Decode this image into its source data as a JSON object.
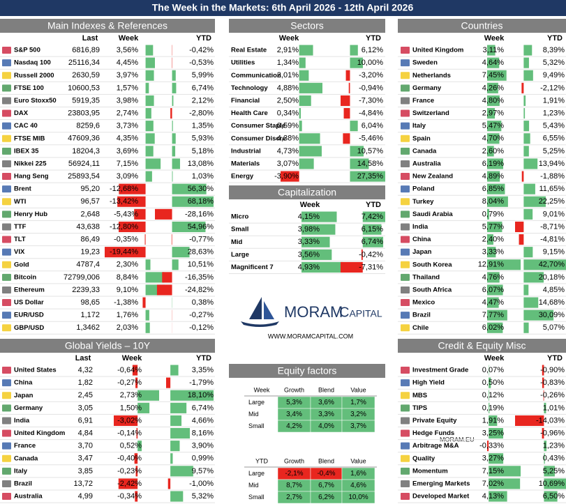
{
  "title": "The Week in the Markets: 6th April 2026 - 12th April 2026",
  "watermark": "MORAM.EU",
  "logo": {
    "name": "MORAM",
    "sub": "Capital",
    "url": "WWW.MORAMCAPITAL.COM"
  },
  "panels": [
    {
      "title": "Main Indexes & References",
      "columns": [
        "Last",
        "Week",
        "YTD"
      ],
      "rows": [
        {
          "name": "S&P 500",
          "cells": [
            "6816,89",
            "3,56%",
            "-0,42%"
          ]
        },
        {
          "name": "Nasdaq 100",
          "cells": [
            "25116,34",
            "4,45%",
            "-0,53%"
          ]
        },
        {
          "name": "Russell 2000",
          "cells": [
            "2630,59",
            "3,97%",
            "5,99%"
          ]
        },
        {
          "name": "FTSE 100",
          "cells": [
            "10600,53",
            "1,57%",
            "6,74%"
          ]
        },
        {
          "name": "Euro Stoxx50",
          "cells": [
            "5919,35",
            "3,98%",
            "2,12%"
          ]
        },
        {
          "name": "DAX",
          "cells": [
            "23803,95",
            "2,74%",
            "-2,80%"
          ]
        },
        {
          "name": "CAC 40",
          "cells": [
            "8259,6",
            "3,73%",
            "1,35%"
          ]
        },
        {
          "name": "FTSE MIB",
          "cells": [
            "47609,36",
            "4,35%",
            "5,93%"
          ]
        },
        {
          "name": "IBEX 35",
          "cells": [
            "18204,3",
            "3,69%",
            "5,18%"
          ]
        },
        {
          "name": "Nikkei 225",
          "cells": [
            "56924,11",
            "7,15%",
            "13,08%"
          ]
        },
        {
          "name": "Hang Seng",
          "cells": [
            "25893,54",
            "3,09%",
            "1,03%"
          ]
        },
        {
          "name": "Brent",
          "cells": [
            "95,20",
            "-12,68%",
            "56,30%"
          ]
        },
        {
          "name": "WTI",
          "cells": [
            "96,57",
            "-13,42%",
            "68,18%"
          ]
        },
        {
          "name": "Henry Hub",
          "cells": [
            "2,648",
            "-5,43%",
            "-28,16%"
          ]
        },
        {
          "name": "TTF",
          "cells": [
            "43,638",
            "-12,80%",
            "54,96%"
          ]
        },
        {
          "name": "TLT",
          "cells": [
            "86,49",
            "-0,35%",
            "-0,77%"
          ]
        },
        {
          "name": "VIX",
          "cells": [
            "19,23",
            "-19,44%",
            "28,63%"
          ]
        },
        {
          "name": "Gold",
          "cells": [
            "4787,4",
            "2,30%",
            "10,51%"
          ]
        },
        {
          "name": "Bitcoin",
          "cells": [
            "72799,006",
            "8,84%",
            "-16,35%"
          ]
        },
        {
          "name": "Ethereum",
          "cells": [
            "2239,33",
            "9,10%",
            "-24,82%"
          ]
        },
        {
          "name": "US Dollar",
          "cells": [
            "98,65",
            "-1,38%",
            "0,38%"
          ]
        },
        {
          "name": "EUR/USD",
          "cells": [
            "1,172",
            "1,76%",
            "-0,27%"
          ]
        },
        {
          "name": "GBP/USD",
          "cells": [
            "1,3462",
            "2,03%",
            "-0,12%"
          ]
        }
      ]
    },
    {
      "title": "Global Yields – 10Y",
      "columns": [
        "Last",
        "Week",
        "YTD"
      ],
      "rows": [
        {
          "name": "United States",
          "cells": [
            "4,32",
            "-0,64%",
            "3,35%"
          ]
        },
        {
          "name": "China",
          "cells": [
            "1,82",
            "-0,27%",
            "-1,79%"
          ]
        },
        {
          "name": "Japan",
          "cells": [
            "2,45",
            "2,73%",
            "18,10%"
          ]
        },
        {
          "name": "Germany",
          "cells": [
            "3,05",
            "1,50%",
            "6,74%"
          ]
        },
        {
          "name": "India",
          "cells": [
            "6,91",
            "-3,02%",
            "4,66%"
          ]
        },
        {
          "name": "United Kingdom",
          "cells": [
            "4,84",
            "-0,14%",
            "8,16%"
          ]
        },
        {
          "name": "France",
          "cells": [
            "3,70",
            "0,52%",
            "3,90%"
          ]
        },
        {
          "name": "Canada",
          "cells": [
            "3,47",
            "-0,40%",
            "0,99%"
          ]
        },
        {
          "name": "Italy",
          "cells": [
            "3,85",
            "-0,23%",
            "9,57%"
          ]
        },
        {
          "name": "Brazil",
          "cells": [
            "13,72",
            "-2,42%",
            "-1,00%"
          ]
        },
        {
          "name": "Australia",
          "cells": [
            "4,99",
            "-0,34%",
            "5,32%"
          ]
        }
      ]
    },
    {
      "title": "Sectors",
      "columns": [
        "Week",
        "YTD"
      ],
      "rows": [
        {
          "name": "Real Estate",
          "cells": [
            "2,91%",
            "6,12%"
          ]
        },
        {
          "name": "Utilities",
          "cells": [
            "1,34%",
            "10,00%"
          ]
        },
        {
          "name": "Communication",
          "cells": [
            "2,01%",
            "-3,20%"
          ]
        },
        {
          "name": "Technology",
          "cells": [
            "4,88%",
            "-0,94%"
          ]
        },
        {
          "name": "Financial",
          "cells": [
            "2,50%",
            "-7,30%"
          ]
        },
        {
          "name": "Health Care",
          "cells": [
            "0,34%",
            "-4,84%"
          ]
        },
        {
          "name": "Consumer Staple",
          "cells": [
            "0,59%",
            "6,04%"
          ]
        },
        {
          "name": "Consumer Discre",
          "cells": [
            "4,38%",
            "-5,46%"
          ]
        },
        {
          "name": "Industrial",
          "cells": [
            "4,73%",
            "10,57%"
          ]
        },
        {
          "name": "Materials",
          "cells": [
            "3,07%",
            "14,58%"
          ]
        },
        {
          "name": "Energy",
          "cells": [
            "-3,90%",
            "27,35%"
          ]
        }
      ]
    },
    {
      "title": "Capitalization",
      "columns": [
        "Week",
        "YTD"
      ],
      "rows": [
        {
          "name": "Micro",
          "cells": [
            "4,15%",
            "7,42%"
          ]
        },
        {
          "name": "Small",
          "cells": [
            "3,98%",
            "6,15%"
          ]
        },
        {
          "name": "Mid",
          "cells": [
            "3,33%",
            "6,74%"
          ]
        },
        {
          "name": "Large",
          "cells": [
            "3,56%",
            "-0,42%"
          ]
        },
        {
          "name": "Magnificent 7",
          "cells": [
            "4,93%",
            "-7,31%"
          ]
        }
      ]
    },
    {
      "title": "Countries",
      "columns": [
        "Week",
        "YTD"
      ],
      "rows": [
        {
          "name": "United Kingdom",
          "cells": [
            "3,11%",
            "8,39%"
          ]
        },
        {
          "name": "Sweden",
          "cells": [
            "4,64%",
            "5,32%"
          ]
        },
        {
          "name": "Netherlands",
          "cells": [
            "7,45%",
            "9,49%"
          ]
        },
        {
          "name": "Germany",
          "cells": [
            "4,26%",
            "-2,12%"
          ]
        },
        {
          "name": "France",
          "cells": [
            "4,80%",
            "1,91%"
          ]
        },
        {
          "name": "Switzerland",
          "cells": [
            "2,97%",
            "1,23%"
          ]
        },
        {
          "name": "Italy",
          "cells": [
            "5,47%",
            "5,43%"
          ]
        },
        {
          "name": "Spain",
          "cells": [
            "4,70%",
            "6,55%"
          ]
        },
        {
          "name": "Canada",
          "cells": [
            "2,60%",
            "5,25%"
          ]
        },
        {
          "name": "Australia",
          "cells": [
            "6,19%",
            "13,94%"
          ]
        },
        {
          "name": "New Zealand",
          "cells": [
            "4,89%",
            "-1,88%"
          ]
        },
        {
          "name": "Poland",
          "cells": [
            "6,85%",
            "11,65%"
          ]
        },
        {
          "name": "Turkey",
          "cells": [
            "8,04%",
            "22,25%"
          ]
        },
        {
          "name": "Saudi Arabia",
          "cells": [
            "0,79%",
            "9,01%"
          ]
        },
        {
          "name": "India",
          "cells": [
            "5,77%",
            "-8,71%"
          ]
        },
        {
          "name": "China",
          "cells": [
            "2,40%",
            "-4,81%"
          ]
        },
        {
          "name": "Japan",
          "cells": [
            "3,33%",
            "9,15%"
          ]
        },
        {
          "name": "South Korea",
          "cells": [
            "12,91%",
            "42,70%"
          ]
        },
        {
          "name": "Thailand",
          "cells": [
            "4,76%",
            "20,18%"
          ]
        },
        {
          "name": "South Africa",
          "cells": [
            "6,07%",
            "4,85%"
          ]
        },
        {
          "name": "Mexico",
          "cells": [
            "4,47%",
            "14,68%"
          ]
        },
        {
          "name": "Brazil",
          "cells": [
            "7,77%",
            "30,09%"
          ]
        },
        {
          "name": "Chile",
          "cells": [
            "6,02%",
            "5,07%"
          ]
        }
      ]
    },
    {
      "title": "Credit & Equity Misc",
      "columns": [
        "Week",
        "YTD"
      ],
      "rows": [
        {
          "name": "Investment Grade",
          "cells": [
            "0,07%",
            "-0,90%"
          ]
        },
        {
          "name": "High Yield",
          "cells": [
            "0,50%",
            "-0,83%"
          ]
        },
        {
          "name": "MBS",
          "cells": [
            "0,12%",
            "-0,26%"
          ]
        },
        {
          "name": "TIPS",
          "cells": [
            "0,19%",
            "1,01%"
          ]
        },
        {
          "name": "Private Equity",
          "cells": [
            "1,91%",
            "-14,03%"
          ]
        },
        {
          "name": "Hedge Funds",
          "cells": [
            "3,25%",
            "-0,96%"
          ]
        },
        {
          "name": "Arbitrage M&A",
          "cells": [
            "-0,33%",
            "1,23%"
          ]
        },
        {
          "name": "Quality",
          "cells": [
            "3,27%",
            "0,43%"
          ]
        },
        {
          "name": "Momentum",
          "cells": [
            "7,15%",
            "5,25%"
          ]
        },
        {
          "name": "Emerging Markets",
          "cells": [
            "7,02%",
            "10,69%"
          ]
        },
        {
          "name": "Developed Market",
          "cells": [
            "4,13%",
            "6,50%"
          ]
        }
      ]
    }
  ],
  "equity_factors": {
    "title": "Equity factors",
    "tables": [
      {
        "corner": "Week",
        "columns": [
          "Growth",
          "Blend",
          "Value"
        ],
        "rows": [
          {
            "name": "Large",
            "cells": [
              "5,3%",
              "3,6%",
              "1,7%"
            ]
          },
          {
            "name": "Mid",
            "cells": [
              "3,4%",
              "3,3%",
              "3,2%"
            ]
          },
          {
            "name": "Small",
            "cells": [
              "4,2%",
              "4,0%",
              "3,7%"
            ]
          }
        ]
      },
      {
        "corner": "YTD",
        "columns": [
          "Growth",
          "Blend",
          "Value"
        ],
        "rows": [
          {
            "name": "Large",
            "cells": [
              "-2,1%",
              "-0,4%",
              "1,6%"
            ]
          },
          {
            "name": "Mid",
            "cells": [
              "8,7%",
              "6,7%",
              "4,6%"
            ]
          },
          {
            "name": "Small",
            "cells": [
              "2,7%",
              "6,2%",
              "10,0%"
            ]
          }
        ]
      }
    ]
  }
}
